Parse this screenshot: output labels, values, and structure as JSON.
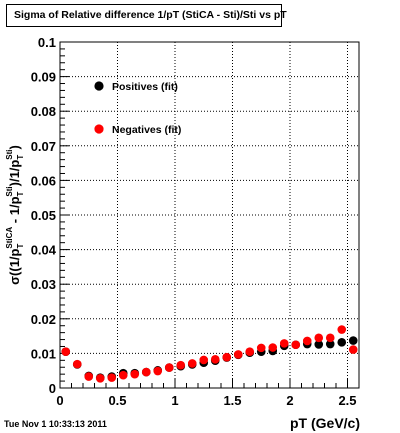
{
  "title": "Sigma of Relative difference 1/pT (StiCA - Sti)/Sti vs pT",
  "footer_timestamp": "Tue Nov  1 10:33:13 2011",
  "chart_data": {
    "type": "scatter",
    "xlabel": "pT (GeV/c)",
    "ylabel_parts": {
      "prefix": "σ((1/p",
      "sub1": "T",
      "sup1": "StiCA",
      "middle": " - 1/p",
      "sub2": "T",
      "sup2": "Sti",
      "mid2": ")/1/p",
      "sub3": "T",
      "sup3": "Sti",
      "suffix": ")"
    },
    "xlim": [
      0,
      2.6
    ],
    "ylim": [
      0,
      0.1
    ],
    "x_ticks": [
      0,
      0.5,
      1,
      1.5,
      2,
      2.5
    ],
    "x_tick_labels": [
      "0",
      "0.5",
      "1",
      "1.5",
      "2",
      "2.5"
    ],
    "y_ticks": [
      0,
      0.01,
      0.02,
      0.03,
      0.04,
      0.05,
      0.06,
      0.07,
      0.08,
      0.09,
      0.1
    ],
    "y_tick_labels": [
      "0",
      "0.01",
      "0.02",
      "0.03",
      "0.04",
      "0.05",
      "0.06",
      "0.07",
      "0.08",
      "0.09",
      "0.1"
    ],
    "grid": true,
    "legend_position": "top-left",
    "series": [
      {
        "name": "Positives (fit)",
        "color": "#000000",
        "x": [
          0.05,
          0.15,
          0.25,
          0.35,
          0.45,
          0.55,
          0.65,
          0.75,
          0.85,
          0.95,
          1.05,
          1.15,
          1.25,
          1.35,
          1.45,
          1.55,
          1.65,
          1.75,
          1.85,
          1.95,
          2.05,
          2.15,
          2.25,
          2.35,
          2.45,
          2.55
        ],
        "y": [
          0.0105,
          0.0068,
          0.0035,
          0.003,
          0.0033,
          0.0043,
          0.0043,
          0.0046,
          0.0051,
          0.0059,
          0.0063,
          0.0068,
          0.0073,
          0.0079,
          0.0088,
          0.0096,
          0.0102,
          0.0105,
          0.0107,
          0.0122,
          0.0125,
          0.0127,
          0.0126,
          0.0127,
          0.0132,
          0.0137
        ]
      },
      {
        "name": "Negatives (fit)",
        "color": "#ff0000",
        "x": [
          0.05,
          0.15,
          0.25,
          0.35,
          0.45,
          0.55,
          0.65,
          0.75,
          0.85,
          0.95,
          1.05,
          1.15,
          1.25,
          1.35,
          1.45,
          1.55,
          1.65,
          1.75,
          1.85,
          1.95,
          2.05,
          2.15,
          2.25,
          2.35,
          2.45,
          2.55
        ],
        "y": [
          0.0105,
          0.0069,
          0.0033,
          0.0028,
          0.003,
          0.0037,
          0.004,
          0.0046,
          0.0049,
          0.0059,
          0.0066,
          0.0071,
          0.0081,
          0.0083,
          0.0089,
          0.0097,
          0.0105,
          0.0116,
          0.0117,
          0.0129,
          0.0125,
          0.0136,
          0.0145,
          0.0145,
          0.0169,
          0.0111
        ]
      }
    ]
  }
}
